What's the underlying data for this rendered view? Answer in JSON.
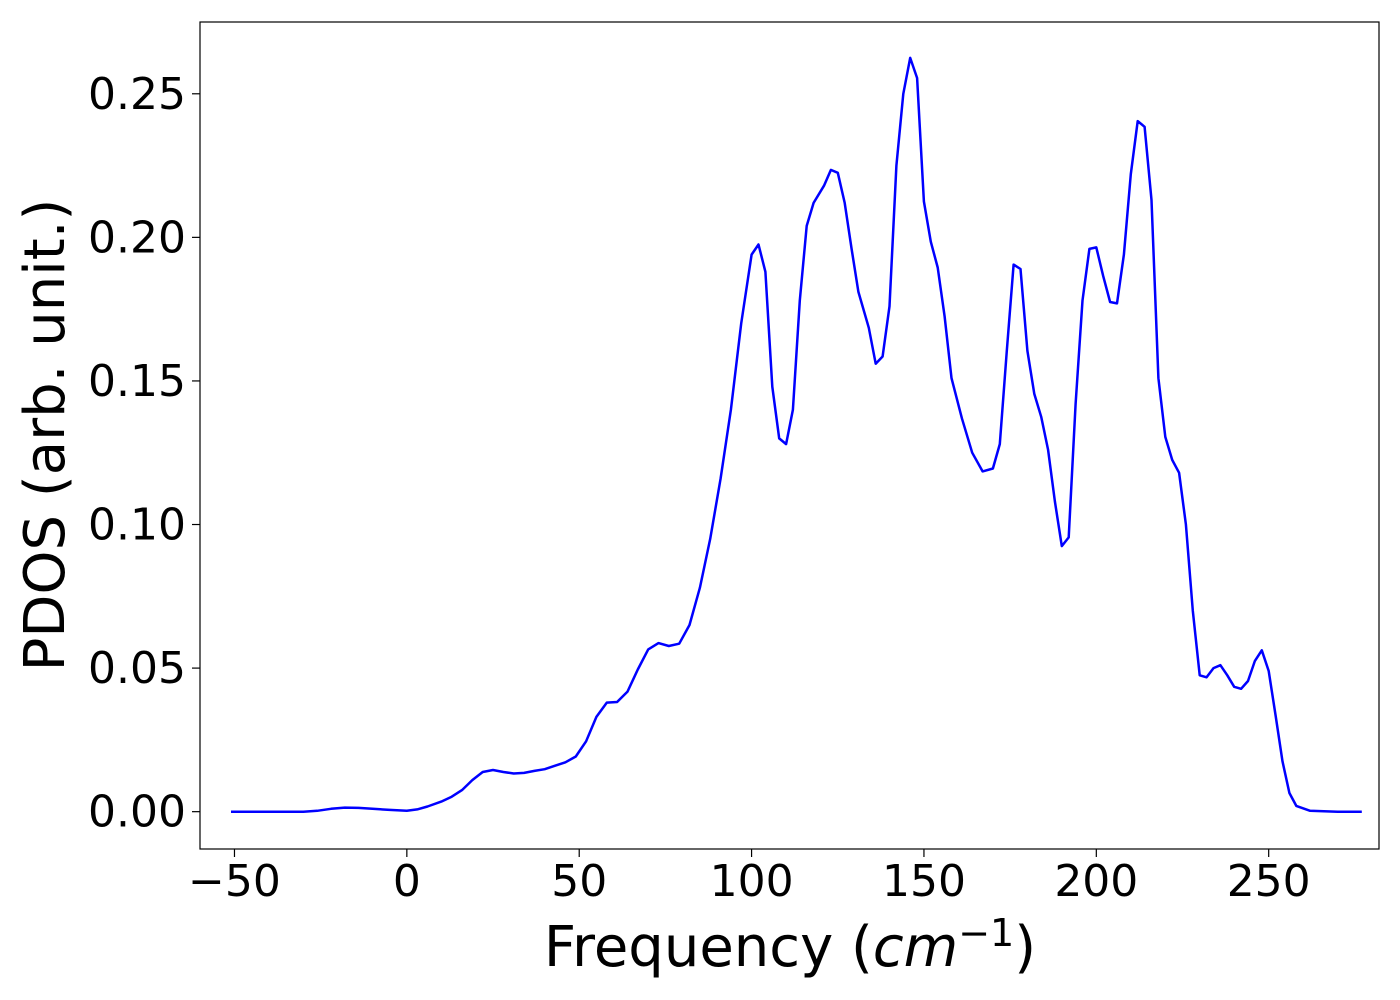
{
  "chart_data": {
    "type": "line",
    "xlabel_text": "Frequency (",
    "xlabel_math": "cm",
    "xlabel_sup": "−1",
    "xlabel_close": ")",
    "ylabel": "PDOS (arb. unit.)",
    "xlim": [
      -60,
      282
    ],
    "ylim": [
      -0.013,
      0.275
    ],
    "xticks": [
      -50,
      0,
      50,
      100,
      150,
      200,
      250
    ],
    "xtick_labels": [
      "−50",
      "0",
      "50",
      "100",
      "150",
      "200",
      "250"
    ],
    "yticks": [
      0.0,
      0.05,
      0.1,
      0.15,
      0.2,
      0.25
    ],
    "ytick_labels": [
      "0.00",
      "0.05",
      "0.10",
      "0.15",
      "0.20",
      "0.25"
    ],
    "grid": false,
    "line_color": "#0000ff",
    "series": [
      {
        "x": [
          -51,
          -40,
          -30,
          -26,
          -22,
          -18,
          -14,
          -10,
          -5,
          0,
          3,
          6,
          10,
          13,
          16,
          19,
          22,
          25,
          28,
          31,
          34,
          37,
          40,
          43,
          46,
          49,
          52,
          55,
          58,
          61,
          64,
          67,
          70,
          73,
          76,
          79,
          82,
          85,
          88,
          91,
          94,
          97,
          100,
          102,
          104,
          106,
          108,
          110,
          112,
          114,
          116,
          118,
          121,
          123,
          125,
          127,
          129,
          131,
          134,
          136,
          138,
          140,
          142,
          144,
          146,
          148,
          150,
          152,
          154,
          156,
          158,
          161,
          164,
          167,
          170,
          172,
          174,
          176,
          178,
          180,
          182,
          184,
          186,
          188,
          190,
          192,
          194,
          196,
          198,
          200,
          202,
          204,
          206,
          208,
          210,
          212,
          214,
          216,
          218,
          220,
          222,
          224,
          226,
          228,
          230,
          232,
          234,
          236,
          238,
          240,
          242,
          244,
          246,
          248,
          250,
          252,
          254,
          256,
          258,
          262,
          270,
          277
        ],
        "y": [
          0.0,
          0.0,
          0.0,
          0.0003,
          0.001,
          0.0014,
          0.0013,
          0.001,
          0.0006,
          0.0003,
          0.0008,
          0.0018,
          0.0035,
          0.0052,
          0.0075,
          0.011,
          0.0138,
          0.0145,
          0.0138,
          0.0133,
          0.0135,
          0.0142,
          0.0148,
          0.016,
          0.0172,
          0.0192,
          0.0245,
          0.033,
          0.038,
          0.0382,
          0.0418,
          0.0495,
          0.0565,
          0.0587,
          0.0577,
          0.0585,
          0.065,
          0.078,
          0.095,
          0.116,
          0.14,
          0.17,
          0.194,
          0.1975,
          0.188,
          0.148,
          0.13,
          0.128,
          0.14,
          0.178,
          0.204,
          0.212,
          0.218,
          0.2235,
          0.2225,
          0.212,
          0.196,
          0.181,
          0.1685,
          0.156,
          0.1585,
          0.176,
          0.225,
          0.25,
          0.2625,
          0.2555,
          0.2125,
          0.1985,
          0.1895,
          0.1725,
          0.151,
          0.137,
          0.125,
          0.1185,
          0.1195,
          0.128,
          0.16,
          0.1905,
          0.189,
          0.1605,
          0.1455,
          0.1375,
          0.126,
          0.108,
          0.0925,
          0.0955,
          0.142,
          0.178,
          0.196,
          0.1965,
          0.1865,
          0.1775,
          0.177,
          0.194,
          0.222,
          0.2405,
          0.2385,
          0.213,
          0.151,
          0.1305,
          0.1225,
          0.118,
          0.1,
          0.07,
          0.0475,
          0.0468,
          0.05,
          0.051,
          0.0475,
          0.0435,
          0.0428,
          0.0455,
          0.0525,
          0.0562,
          0.049,
          0.0335,
          0.0175,
          0.0065,
          0.002,
          0.0003,
          0.0,
          0.0
        ]
      }
    ]
  }
}
